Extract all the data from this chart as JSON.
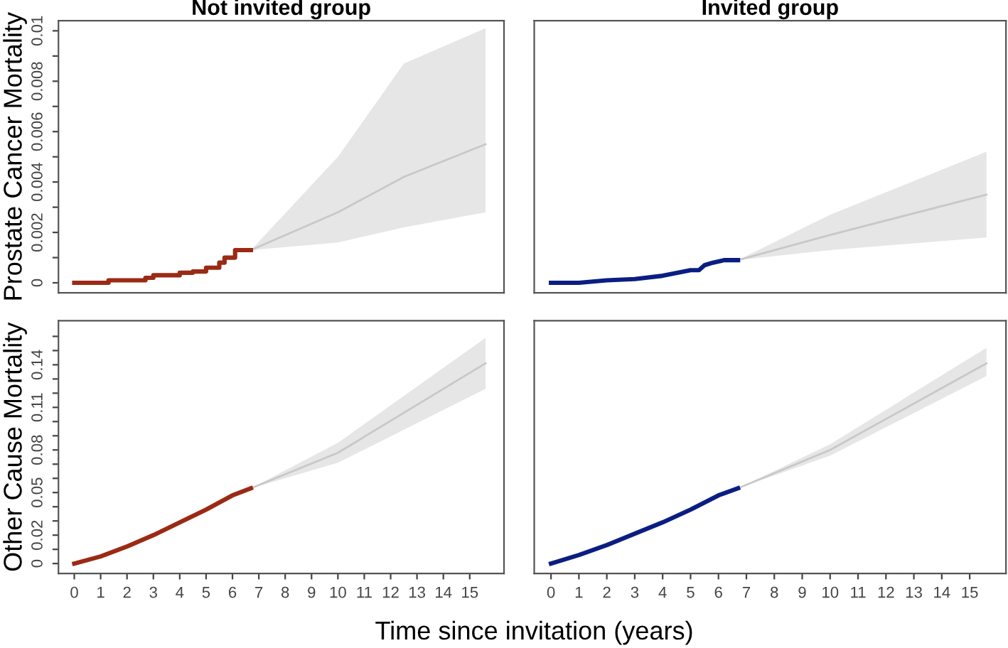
{
  "chart_data": [
    {
      "type": "line",
      "title": "Not invited group",
      "ylabel": "Prostate Cancer Mortality",
      "xlim": [
        -0.6,
        16.3
      ],
      "ylim": [
        -0.0004,
        0.0104
      ],
      "yticks": [
        0,
        {
          "value": 0.001,
          "label": null
        },
        0.002,
        {
          "value": 0.003,
          "label": null
        },
        0.004,
        {
          "value": 0.005,
          "label": null
        },
        0.006,
        {
          "value": 0.007,
          "label": null
        },
        0.008,
        {
          "value": 0.009,
          "label": null
        },
        0.01
      ],
      "tick_labels": "y",
      "series": [
        {
          "color": "#c8c8c8",
          "x": [
            6.7,
            10,
            12.5,
            15.6
          ],
          "values": [
            0.0013,
            0.0028,
            0.0042,
            0.0055
          ],
          "lower": [
            0.0013,
            0.0016,
            0.0022,
            0.0028
          ],
          "upper": [
            0.0013,
            0.005,
            0.0087,
            0.0101
          ]
        },
        {
          "type": "step",
          "color": "#9b2a14",
          "x": [
            0,
            1.2,
            1.3,
            2.3,
            2.7,
            3.0,
            4.0,
            4.5,
            5.0,
            5.5,
            5.7,
            6.0,
            6.1,
            6.7
          ],
          "values": [
            0,
            0,
            0.0001,
            0.0001,
            0.0002,
            0.0003,
            0.0004,
            0.00045,
            0.0006,
            0.0008,
            0.001,
            0.001,
            0.0013,
            0.0013
          ]
        }
      ]
    },
    {
      "type": "line",
      "title": "Invited group",
      "xlim": [
        -0.6,
        16.3
      ],
      "ylim": [
        -0.0004,
        0.0104
      ],
      "tick_labels": false,
      "series": [
        {
          "color": "#c8c8c8",
          "x": [
            6.7,
            10,
            15.6
          ],
          "values": [
            0.0009,
            0.0019,
            0.0035
          ],
          "lower": [
            0.0009,
            0.0013,
            0.0018
          ],
          "upper": [
            0.0009,
            0.0027,
            0.0052
          ]
        },
        {
          "color": "#0a1e82",
          "x": [
            0,
            1,
            2,
            3,
            4,
            5,
            5.3,
            5.5,
            5.8,
            6.2,
            6.7
          ],
          "values": [
            0,
            0,
            0.0001,
            0.00015,
            0.00028,
            0.0005,
            0.0005,
            0.0007,
            0.0008,
            0.0009,
            0.0009
          ]
        }
      ]
    },
    {
      "type": "line",
      "ylabel": "Other Cause Mortality",
      "xlabel": "Time since invitation (years)",
      "xlim": [
        -0.6,
        16.3
      ],
      "ylim": [
        -0.007,
        0.171
      ],
      "xticks": [
        0,
        1,
        2,
        3,
        4,
        5,
        6,
        7,
        8,
        9,
        10,
        11,
        12,
        13,
        14,
        15
      ],
      "yticks": [
        0,
        {
          "value": 0.01,
          "label": null
        },
        0.02,
        {
          "value": 0.03,
          "label": null
        },
        {
          "value": 0.04,
          "label": null
        },
        0.05,
        {
          "value": 0.06,
          "label": null
        },
        {
          "value": 0.07,
          "label": null
        },
        0.08,
        {
          "value": 0.09,
          "label": null
        },
        {
          "value": 0.1,
          "label": null
        },
        0.11,
        {
          "value": 0.12,
          "label": null
        },
        {
          "value": 0.13,
          "label": null
        },
        0.14,
        {
          "value": 0.15,
          "label": null
        },
        {
          "value": 0.16,
          "label": null
        }
      ],
      "series": [
        {
          "color": "#c8c8c8",
          "x": [
            6.7,
            10,
            15.6
          ],
          "values": [
            0.053,
            0.078,
            0.141
          ],
          "lower": [
            0.053,
            0.071,
            0.123
          ],
          "upper": [
            0.053,
            0.085,
            0.159
          ]
        },
        {
          "color": "#9b2a14",
          "x": [
            0,
            1,
            2,
            3,
            4,
            5,
            6,
            6.7
          ],
          "values": [
            0,
            0.005,
            0.012,
            0.02,
            0.029,
            0.038,
            0.048,
            0.053
          ]
        }
      ]
    },
    {
      "type": "line",
      "xlim": [
        -0.6,
        16.3
      ],
      "ylim": [
        -0.007,
        0.171
      ],
      "xticks": [
        0,
        1,
        2,
        3,
        4,
        5,
        6,
        7,
        8,
        9,
        10,
        11,
        12,
        13,
        14,
        15
      ],
      "tick_labels": "x",
      "series": [
        {
          "color": "#c8c8c8",
          "x": [
            6.7,
            10,
            15.6
          ],
          "values": [
            0.053,
            0.08,
            0.141
          ],
          "lower": [
            0.053,
            0.076,
            0.132
          ],
          "upper": [
            0.053,
            0.084,
            0.152
          ]
        },
        {
          "color": "#0a1e82",
          "x": [
            0,
            1,
            2,
            3,
            4,
            5,
            6,
            6.7
          ],
          "values": [
            0,
            0.006,
            0.013,
            0.021,
            0.029,
            0.038,
            0.048,
            0.053
          ]
        }
      ]
    }
  ]
}
